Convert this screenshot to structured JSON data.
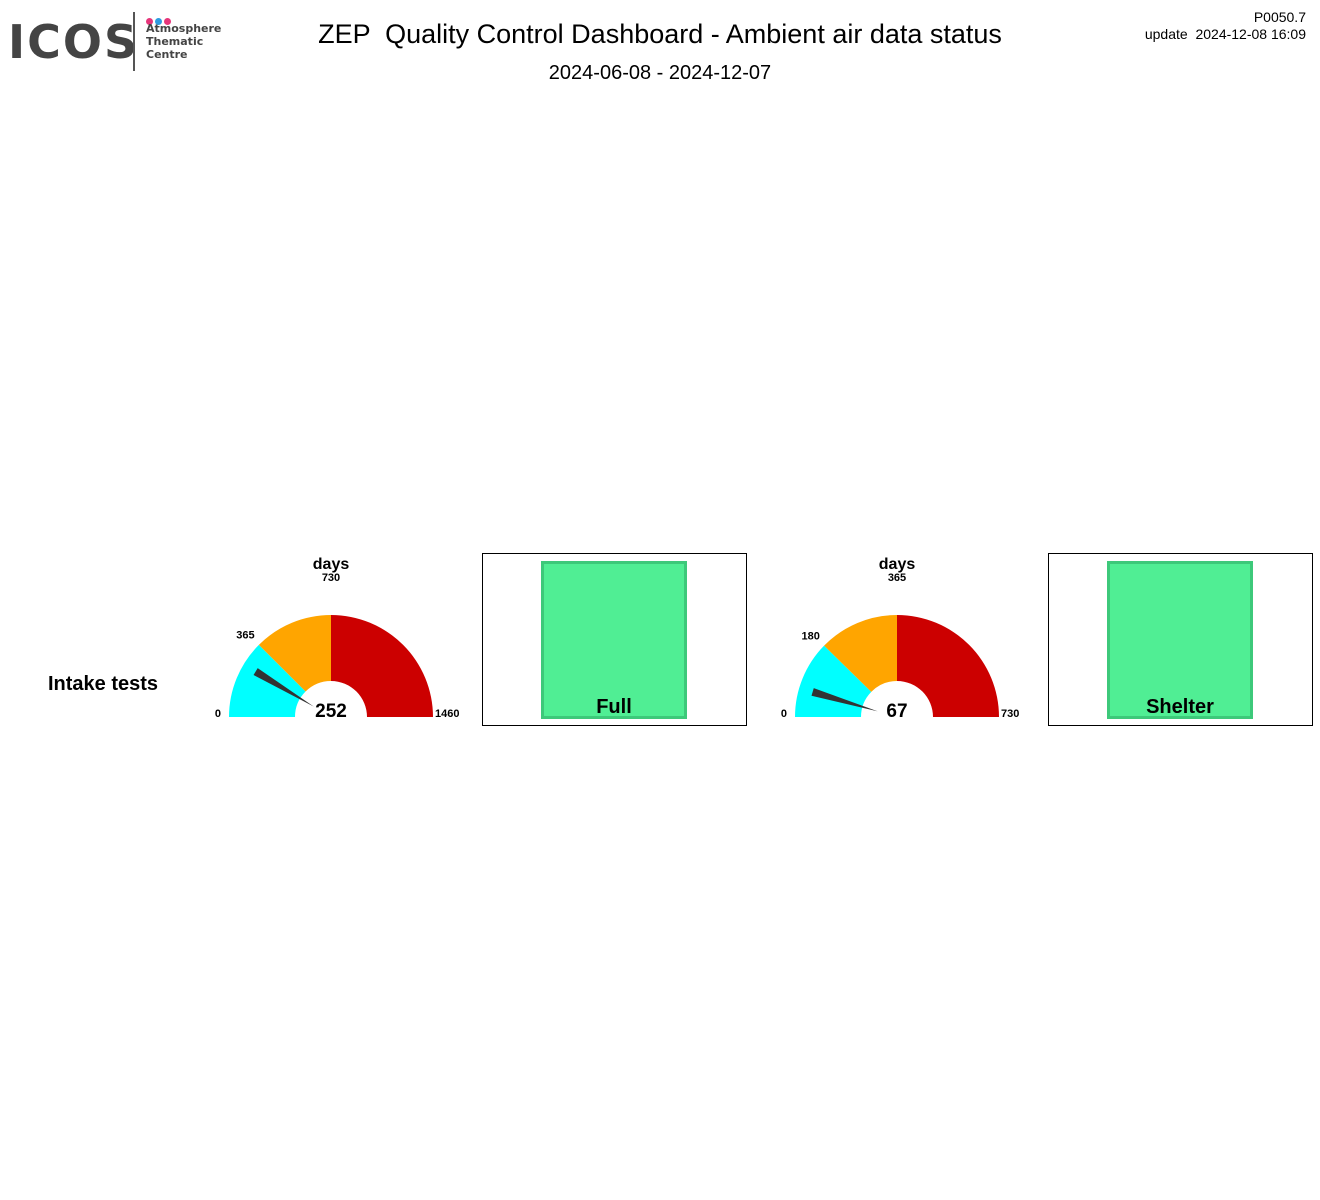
{
  "header": {
    "logo_text": "ICOS",
    "logo_sub": [
      "Atmosphere",
      "Thematic",
      "Centre"
    ],
    "logo_dot_colors": [
      "#e6357a",
      "#2e9be0",
      "#e6357a"
    ],
    "title": "ZEP  Quality Control Dashboard - Ambient air data status",
    "period": "2024-06-08 - 2024-12-07",
    "product_code": "P0050.7",
    "update": "update  2024-12-08 16:09"
  },
  "rows": [
    {
      "label": "Intake tests"
    }
  ],
  "gauges": [
    {
      "unit": "days",
      "value": 252,
      "value_label": "252",
      "min": 0,
      "max": 1460,
      "tick_labels": [
        "0",
        "365",
        "730",
        "1460"
      ],
      "bands": [
        {
          "from": 0,
          "to": 365,
          "color": "#00ffff"
        },
        {
          "from": 365,
          "to": 730,
          "color": "#ffa500"
        },
        {
          "from": 730,
          "to": 1460,
          "color": "#cc0000"
        }
      ]
    },
    {
      "unit": "days",
      "value": 67,
      "value_label": "67",
      "min": 0,
      "max": 730,
      "tick_labels": [
        "0",
        "180",
        "365",
        "730"
      ],
      "bands": [
        {
          "from": 0,
          "to": 180,
          "color": "#00ffff"
        },
        {
          "from": 180,
          "to": 365,
          "color": "#ffa500"
        },
        {
          "from": 365,
          "to": 730,
          "color": "#cc0000"
        }
      ]
    }
  ],
  "status_boxes": [
    {
      "label": "Full",
      "color": "#50ee94"
    },
    {
      "label": "Shelter",
      "color": "#50ee94"
    }
  ]
}
